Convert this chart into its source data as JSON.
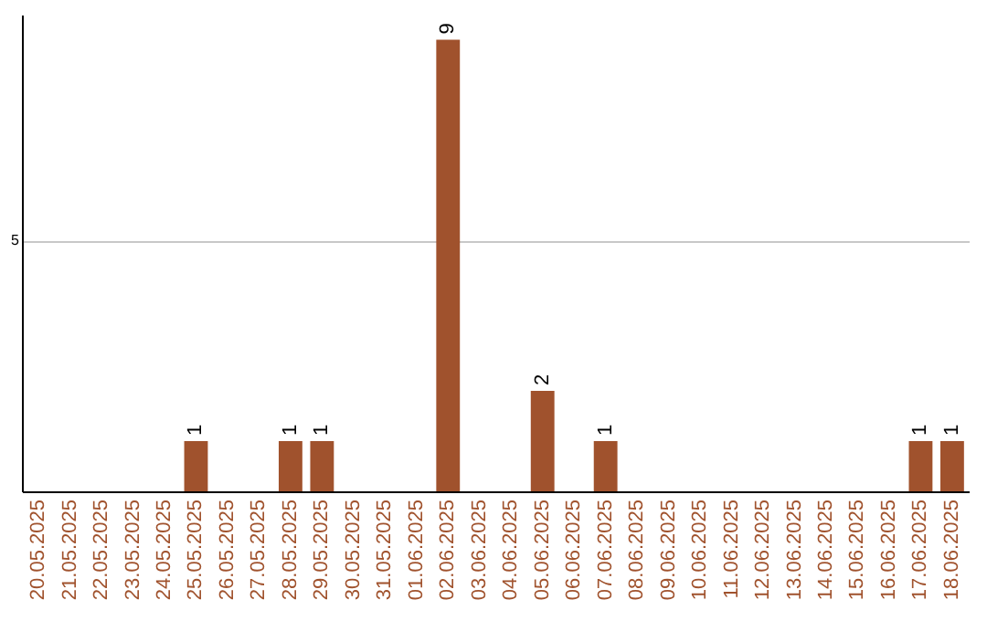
{
  "chart_data": {
    "type": "bar",
    "categories": [
      "20.05.2025",
      "21.05.2025",
      "22.05.2025",
      "23.05.2025",
      "24.05.2025",
      "25.05.2025",
      "26.05.2025",
      "27.05.2025",
      "28.05.2025",
      "29.05.2025",
      "30.05.2025",
      "31.05.2025",
      "01.06.2025",
      "02.06.2025",
      "03.06.2025",
      "04.06.2025",
      "05.06.2025",
      "06.06.2025",
      "07.06.2025",
      "08.06.2025",
      "09.06.2025",
      "10.06.2025",
      "11.06.2025",
      "12.06.2025",
      "13.06.2025",
      "14.06.2025",
      "15.06.2025",
      "16.06.2025",
      "17.06.2025",
      "18.06.2025"
    ],
    "values": [
      0,
      0,
      0,
      0,
      0,
      1,
      0,
      0,
      1,
      1,
      0,
      0,
      0,
      9,
      0,
      0,
      2,
      0,
      1,
      0,
      0,
      0,
      0,
      0,
      0,
      0,
      0,
      0,
      1,
      1
    ],
    "value_labels": [
      null,
      null,
      null,
      null,
      null,
      "1",
      null,
      null,
      "1",
      "1",
      null,
      null,
      null,
      "9",
      null,
      null,
      "2",
      null,
      "1",
      null,
      null,
      null,
      null,
      null,
      null,
      null,
      null,
      null,
      "1",
      "1"
    ],
    "color": "#a0522d",
    "ylim": [
      0,
      9.5
    ],
    "yticks": [
      5
    ],
    "grid": "y"
  }
}
